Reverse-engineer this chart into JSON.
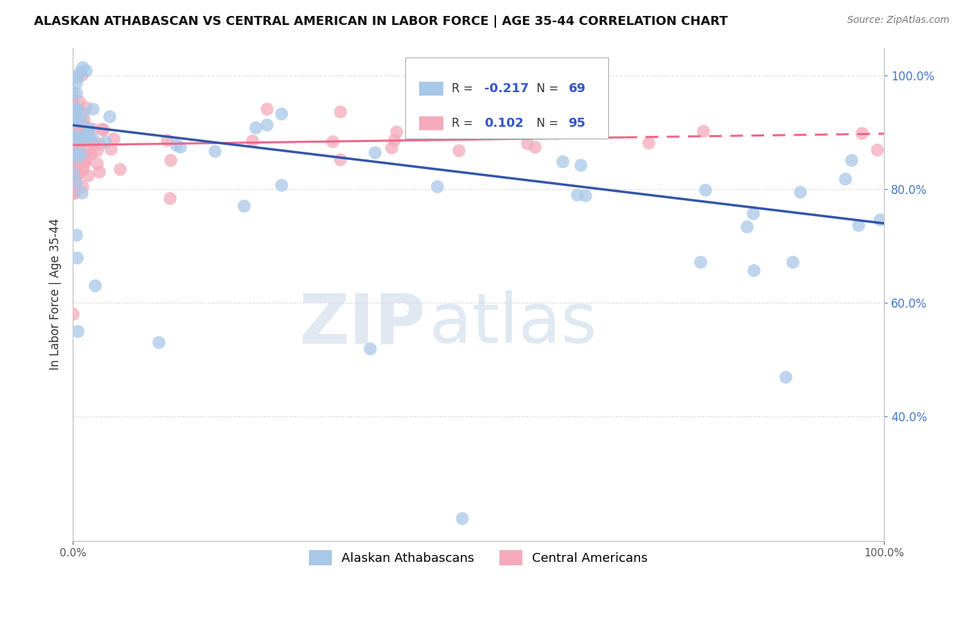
{
  "title": "ALASKAN ATHABASCAN VS CENTRAL AMERICAN IN LABOR FORCE | AGE 35-44 CORRELATION CHART",
  "source": "Source: ZipAtlas.com",
  "ylabel": "In Labor Force | Age 35-44",
  "xlim": [
    0.0,
    1.0
  ],
  "ylim": [
    0.18,
    1.05
  ],
  "blue_label": "Alaskan Athabascans",
  "pink_label": "Central Americans",
  "blue_R": -0.217,
  "blue_N": 69,
  "pink_R": 0.102,
  "pink_N": 95,
  "blue_color": "#A8C8E8",
  "pink_color": "#F4AABB",
  "blue_line_color": "#3355AA",
  "pink_line_color": "#EE6688",
  "watermark_ZIP": "ZIP",
  "watermark_atlas": "atlas",
  "yticks": [
    0.4,
    0.6,
    0.8,
    1.0
  ],
  "xticks": [
    0.0,
    1.0
  ],
  "grid_color": "#CCCCCC"
}
